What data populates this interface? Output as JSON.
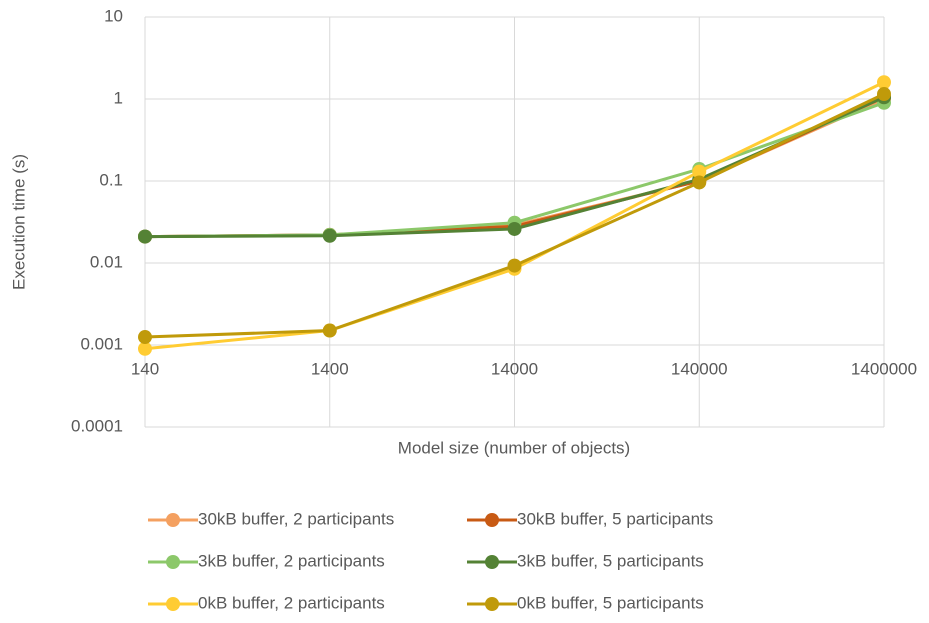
{
  "chart_data": {
    "type": "line",
    "x": [
      140,
      1400,
      14000,
      140000,
      1400000
    ],
    "xlim": [
      140,
      1400000
    ],
    "xticks": [
      140,
      1400,
      14000,
      140000,
      1400000
    ],
    "xlog": true,
    "ylim": [
      0.0001,
      10
    ],
    "yticks": [
      0.0001,
      0.001,
      0.01,
      0.1,
      1,
      10
    ],
    "ylog": true,
    "xaxis_crosses": 0.001,
    "grid": true,
    "legend": "bottom",
    "xlabel": "Model size (number of objects)",
    "ylabel": "Execution time (s)",
    "series": [
      {
        "name": "30kB buffer, 2 participants",
        "color": "#f4a060",
        "values": [
          0.021,
          0.022,
          0.029,
          0.1,
          1.0
        ]
      },
      {
        "name": "30kB buffer, 5 participants",
        "color": "#c85a14",
        "values": [
          0.021,
          0.022,
          0.028,
          0.1,
          1.05
        ]
      },
      {
        "name": "3kB buffer, 2 participants",
        "color": "#8cc86a",
        "values": [
          0.021,
          0.022,
          0.031,
          0.14,
          0.9
        ]
      },
      {
        "name": "3kB buffer, 5 participants",
        "color": "#548235",
        "values": [
          0.021,
          0.0215,
          0.026,
          0.105,
          1.05
        ]
      },
      {
        "name": "0kB buffer, 2 participants",
        "color": "#ffcc33",
        "values": [
          0.0009,
          0.0015,
          0.0085,
          0.13,
          1.6
        ]
      },
      {
        "name": "0kB buffer, 5 participants",
        "color": "#c09a0a",
        "values": [
          0.00125,
          0.0015,
          0.0093,
          0.096,
          1.15
        ]
      }
    ]
  }
}
